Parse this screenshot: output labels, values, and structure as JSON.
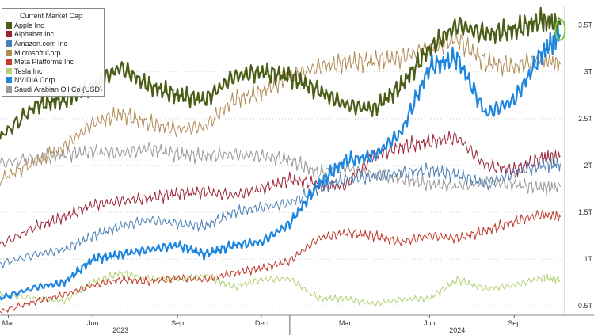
{
  "chart_data": {
    "type": "line",
    "legend_title": "Current Market Cap",
    "legend_position": "top-left",
    "grid": "horizontal dotted",
    "y_axis": {
      "position": "right",
      "ylim": [
        0.4,
        3.7
      ],
      "ticks": [
        0.5,
        1,
        1.5,
        2,
        2.5,
        3,
        3.5
      ],
      "tick_labels": [
        "0.5T",
        "1T",
        "1.5T",
        "2T",
        "2.5T",
        "3T",
        "3.5T"
      ]
    },
    "x_axis": {
      "range": [
        "2023-02-20",
        "2024-10-25"
      ],
      "ticks": [
        {
          "date": "2023-03-01",
          "label": "Mar"
        },
        {
          "date": "2023-06-01",
          "label": "Jun"
        },
        {
          "date": "2023-09-01",
          "label": "Sep"
        },
        {
          "date": "2023-12-01",
          "label": "Dec"
        },
        {
          "date": "2024-03-01",
          "label": "Mar"
        },
        {
          "date": "2024-06-01",
          "label": "Jun"
        },
        {
          "date": "2024-09-01",
          "label": "Sep"
        }
      ],
      "years": [
        {
          "date": "2023-07-01",
          "label": "2023"
        },
        {
          "date": "2024-07-01",
          "label": "2024"
        }
      ],
      "year_divider": "2024-01-01"
    },
    "annotation": {
      "type": "circle",
      "color": "#7ac943",
      "series": "NVIDIA Corp",
      "date": "2024-10-21",
      "value": 3.4
    },
    "series": [
      {
        "name": "Saudi Arabian Oil Co (USD)",
        "color": "#999999",
        "width": 1,
        "points": [
          [
            "2023-02-20",
            2.02
          ],
          [
            "2023-04-01",
            2.08
          ],
          [
            "2023-05-01",
            2.12
          ],
          [
            "2023-06-01",
            2.15
          ],
          [
            "2023-07-01",
            2.13
          ],
          [
            "2023-08-01",
            2.18
          ],
          [
            "2023-09-01",
            2.12
          ],
          [
            "2023-10-01",
            2.1
          ],
          [
            "2023-11-01",
            2.12
          ],
          [
            "2023-12-01",
            2.1
          ],
          [
            "2024-01-01",
            2.06
          ],
          [
            "2024-02-01",
            1.92
          ],
          [
            "2024-03-01",
            1.98
          ],
          [
            "2024-04-01",
            1.9
          ],
          [
            "2024-05-01",
            1.86
          ],
          [
            "2024-06-01",
            1.8
          ],
          [
            "2024-07-01",
            1.78
          ],
          [
            "2024-08-01",
            1.82
          ],
          [
            "2024-09-01",
            1.8
          ],
          [
            "2024-10-01",
            1.76
          ],
          [
            "2024-10-21",
            1.77
          ]
        ]
      },
      {
        "name": "Tesla Inc",
        "color": "#b5d27a",
        "width": 1,
        "points": [
          [
            "2023-02-20",
            0.62
          ],
          [
            "2023-04-01",
            0.58
          ],
          [
            "2023-05-01",
            0.55
          ],
          [
            "2023-06-01",
            0.75
          ],
          [
            "2023-07-01",
            0.85
          ],
          [
            "2023-08-01",
            0.79
          ],
          [
            "2023-09-01",
            0.78
          ],
          [
            "2023-10-01",
            0.82
          ],
          [
            "2023-11-01",
            0.7
          ],
          [
            "2023-12-01",
            0.78
          ],
          [
            "2024-01-01",
            0.79
          ],
          [
            "2024-02-01",
            0.58
          ],
          [
            "2024-03-01",
            0.58
          ],
          [
            "2024-04-01",
            0.52
          ],
          [
            "2024-05-01",
            0.57
          ],
          [
            "2024-06-01",
            0.58
          ],
          [
            "2024-07-01",
            0.78
          ],
          [
            "2024-08-01",
            0.68
          ],
          [
            "2024-09-01",
            0.72
          ],
          [
            "2024-10-01",
            0.8
          ],
          [
            "2024-10-21",
            0.78
          ]
        ]
      },
      {
        "name": "Meta Platforms Inc",
        "color": "#c0392b",
        "width": 1,
        "points": [
          [
            "2023-02-20",
            0.44
          ],
          [
            "2023-04-01",
            0.55
          ],
          [
            "2023-05-01",
            0.62
          ],
          [
            "2023-06-01",
            0.72
          ],
          [
            "2023-07-01",
            0.78
          ],
          [
            "2023-08-01",
            0.76
          ],
          [
            "2023-09-01",
            0.8
          ],
          [
            "2023-10-01",
            0.78
          ],
          [
            "2023-11-01",
            0.85
          ],
          [
            "2023-12-01",
            0.9
          ],
          [
            "2024-01-01",
            0.98
          ],
          [
            "2024-02-01",
            1.22
          ],
          [
            "2024-03-01",
            1.28
          ],
          [
            "2024-04-01",
            1.25
          ],
          [
            "2024-05-01",
            1.18
          ],
          [
            "2024-06-01",
            1.25
          ],
          [
            "2024-07-01",
            1.22
          ],
          [
            "2024-08-01",
            1.3
          ],
          [
            "2024-09-01",
            1.4
          ],
          [
            "2024-10-01",
            1.48
          ],
          [
            "2024-10-21",
            1.45
          ]
        ]
      },
      {
        "name": "Alphabet Inc",
        "color": "#9b2335",
        "width": 1,
        "points": [
          [
            "2023-02-20",
            1.15
          ],
          [
            "2023-04-01",
            1.35
          ],
          [
            "2023-05-01",
            1.45
          ],
          [
            "2023-06-01",
            1.58
          ],
          [
            "2023-07-01",
            1.62
          ],
          [
            "2023-08-01",
            1.65
          ],
          [
            "2023-09-01",
            1.7
          ],
          [
            "2023-10-01",
            1.72
          ],
          [
            "2023-11-01",
            1.68
          ],
          [
            "2023-12-01",
            1.75
          ],
          [
            "2024-01-01",
            1.85
          ],
          [
            "2024-02-01",
            1.8
          ],
          [
            "2024-03-01",
            1.78
          ],
          [
            "2024-04-01",
            2.1
          ],
          [
            "2024-05-01",
            2.2
          ],
          [
            "2024-06-01",
            2.25
          ],
          [
            "2024-07-01",
            2.3
          ],
          [
            "2024-08-01",
            2.0
          ],
          [
            "2024-09-01",
            1.95
          ],
          [
            "2024-10-01",
            2.08
          ],
          [
            "2024-10-21",
            2.1
          ]
        ]
      },
      {
        "name": "Amazon.com Inc",
        "color": "#4a7fb5",
        "width": 1,
        "points": [
          [
            "2023-02-20",
            0.95
          ],
          [
            "2023-04-01",
            1.05
          ],
          [
            "2023-05-01",
            1.1
          ],
          [
            "2023-06-01",
            1.25
          ],
          [
            "2023-07-01",
            1.35
          ],
          [
            "2023-08-01",
            1.42
          ],
          [
            "2023-09-01",
            1.38
          ],
          [
            "2023-10-01",
            1.35
          ],
          [
            "2023-11-01",
            1.5
          ],
          [
            "2023-12-01",
            1.55
          ],
          [
            "2024-01-01",
            1.6
          ],
          [
            "2024-02-01",
            1.75
          ],
          [
            "2024-03-01",
            1.85
          ],
          [
            "2024-04-01",
            1.88
          ],
          [
            "2024-05-01",
            1.92
          ],
          [
            "2024-06-01",
            1.95
          ],
          [
            "2024-07-01",
            1.9
          ],
          [
            "2024-08-01",
            1.8
          ],
          [
            "2024-09-01",
            1.92
          ],
          [
            "2024-10-01",
            2.0
          ],
          [
            "2024-10-21",
            2.02
          ]
        ]
      },
      {
        "name": "Microsoft Corp",
        "color": "#b08d57",
        "width": 1,
        "points": [
          [
            "2023-02-20",
            1.85
          ],
          [
            "2023-04-01",
            2.05
          ],
          [
            "2023-05-01",
            2.2
          ],
          [
            "2023-06-01",
            2.45
          ],
          [
            "2023-07-01",
            2.55
          ],
          [
            "2023-08-01",
            2.45
          ],
          [
            "2023-09-01",
            2.38
          ],
          [
            "2023-10-01",
            2.42
          ],
          [
            "2023-11-01",
            2.7
          ],
          [
            "2023-12-01",
            2.78
          ],
          [
            "2024-01-01",
            2.95
          ],
          [
            "2024-02-01",
            3.05
          ],
          [
            "2024-03-01",
            3.1
          ],
          [
            "2024-04-01",
            3.12
          ],
          [
            "2024-05-01",
            3.15
          ],
          [
            "2024-06-01",
            3.25
          ],
          [
            "2024-07-01",
            3.35
          ],
          [
            "2024-08-01",
            3.1
          ],
          [
            "2024-09-01",
            3.05
          ],
          [
            "2024-10-01",
            3.15
          ],
          [
            "2024-10-21",
            3.08
          ]
        ]
      },
      {
        "name": "Apple Inc",
        "color": "#4b5d16",
        "width": 2.2,
        "points": [
          [
            "2023-02-20",
            2.3
          ],
          [
            "2023-04-01",
            2.65
          ],
          [
            "2023-05-01",
            2.7
          ],
          [
            "2023-06-01",
            2.85
          ],
          [
            "2023-07-01",
            3.05
          ],
          [
            "2023-08-01",
            2.85
          ],
          [
            "2023-09-01",
            2.75
          ],
          [
            "2023-10-01",
            2.7
          ],
          [
            "2023-11-01",
            2.95
          ],
          [
            "2023-12-01",
            3.0
          ],
          [
            "2024-01-01",
            2.95
          ],
          [
            "2024-02-01",
            2.8
          ],
          [
            "2024-03-01",
            2.65
          ],
          [
            "2024-04-01",
            2.6
          ],
          [
            "2024-05-01",
            2.85
          ],
          [
            "2024-06-01",
            3.25
          ],
          [
            "2024-07-01",
            3.5
          ],
          [
            "2024-08-01",
            3.4
          ],
          [
            "2024-09-01",
            3.45
          ],
          [
            "2024-10-01",
            3.55
          ],
          [
            "2024-10-21",
            3.5
          ]
        ]
      },
      {
        "name": "NVIDIA Corp",
        "color": "#1f86e0",
        "width": 2.2,
        "points": [
          [
            "2023-02-20",
            0.58
          ],
          [
            "2023-04-01",
            0.7
          ],
          [
            "2023-05-01",
            0.75
          ],
          [
            "2023-06-01",
            1.0
          ],
          [
            "2023-07-01",
            1.05
          ],
          [
            "2023-08-01",
            1.1
          ],
          [
            "2023-09-01",
            1.15
          ],
          [
            "2023-10-01",
            1.05
          ],
          [
            "2023-11-01",
            1.15
          ],
          [
            "2023-12-01",
            1.18
          ],
          [
            "2024-01-01",
            1.38
          ],
          [
            "2024-02-01",
            1.8
          ],
          [
            "2024-03-01",
            2.05
          ],
          [
            "2024-04-01",
            2.1
          ],
          [
            "2024-05-01",
            2.35
          ],
          [
            "2024-06-01",
            3.05
          ],
          [
            "2024-07-01",
            3.15
          ],
          [
            "2024-08-01",
            2.55
          ],
          [
            "2024-09-01",
            2.7
          ],
          [
            "2024-10-01",
            3.2
          ],
          [
            "2024-10-21",
            3.4
          ]
        ]
      }
    ]
  },
  "legend": {
    "title": "Current Market Cap",
    "items": [
      {
        "label": "Apple Inc",
        "color": "#4b5d16"
      },
      {
        "label": "Alphabet Inc",
        "color": "#9b2335"
      },
      {
        "label": "Amazon.com Inc",
        "color": "#4a7fb5"
      },
      {
        "label": "Microsoft Corp",
        "color": "#b08d57"
      },
      {
        "label": "Meta Platforms Inc",
        "color": "#c0392b"
      },
      {
        "label": "Tesla Inc",
        "color": "#b5d27a"
      },
      {
        "label": "NVIDIA Corp",
        "color": "#1f86e0"
      },
      {
        "label": "Saudi Arabian Oil Co (USD)",
        "color": "#999999"
      }
    ]
  }
}
